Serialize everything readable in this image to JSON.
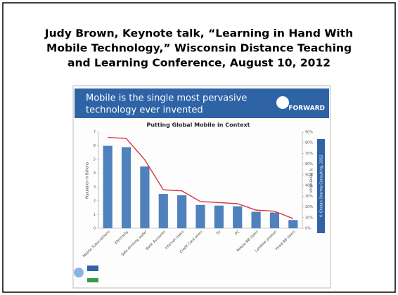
{
  "page_title": [
    "Judy Brown, Keynote talk, “Learning in Hand With",
    "Mobile Technology,” Wisconsin Distance Teaching",
    "and Learning Conference, August 10, 2012"
  ],
  "slide": {
    "headline": [
      "Mobile is the single most pervasive",
      "technology ever invented"
    ],
    "logo": "FORWARD",
    "copyright": "© Chetan Sharma Consulting, 2012"
  },
  "chart_data": {
    "type": "bar",
    "title": "Putting Global Mobile in Context",
    "y_label": "Population in Billions",
    "y2_label": "% Penetration",
    "categories": [
      "Mobile Subscriptions",
      "Electricity",
      "Safe drinking water",
      "Bank Accounts",
      "Internet Users",
      "Credit Card users",
      "TV",
      "PC",
      "Mobile BB Users",
      "Landline phones",
      "Fixed BB Users"
    ],
    "series": [
      {
        "name": "Population",
        "type": "bar",
        "color": "#4f81bd",
        "values": [
          6,
          5.9,
          4.5,
          2.5,
          2.4,
          1.7,
          1.65,
          1.6,
          1.2,
          1.15,
          0.6
        ]
      },
      {
        "name": "Penetration",
        "type": "line",
        "axis": "y2",
        "color": "#d9363e",
        "values": [
          85,
          84,
          64,
          36,
          35,
          25,
          24,
          23,
          17,
          16,
          9
        ]
      }
    ],
    "ylim": [
      0,
      7
    ],
    "yticks": [
      0,
      1,
      2,
      3,
      4,
      5,
      6,
      7
    ],
    "y2lim": [
      0,
      90
    ],
    "y2ticks": [
      {
        "value": 0,
        "label": "0%"
      },
      {
        "value": 10,
        "label": "10%"
      },
      {
        "value": 20,
        "label": "20%"
      },
      {
        "value": 30,
        "label": "30%"
      },
      {
        "value": 40,
        "label": "40%"
      },
      {
        "value": 50,
        "label": "50%"
      },
      {
        "value": 60,
        "label": "60%"
      },
      {
        "value": 70,
        "label": "70%"
      },
      {
        "value": 80,
        "label": "80%"
      },
      {
        "value": 90,
        "label": "90%"
      }
    ],
    "grid": false
  }
}
